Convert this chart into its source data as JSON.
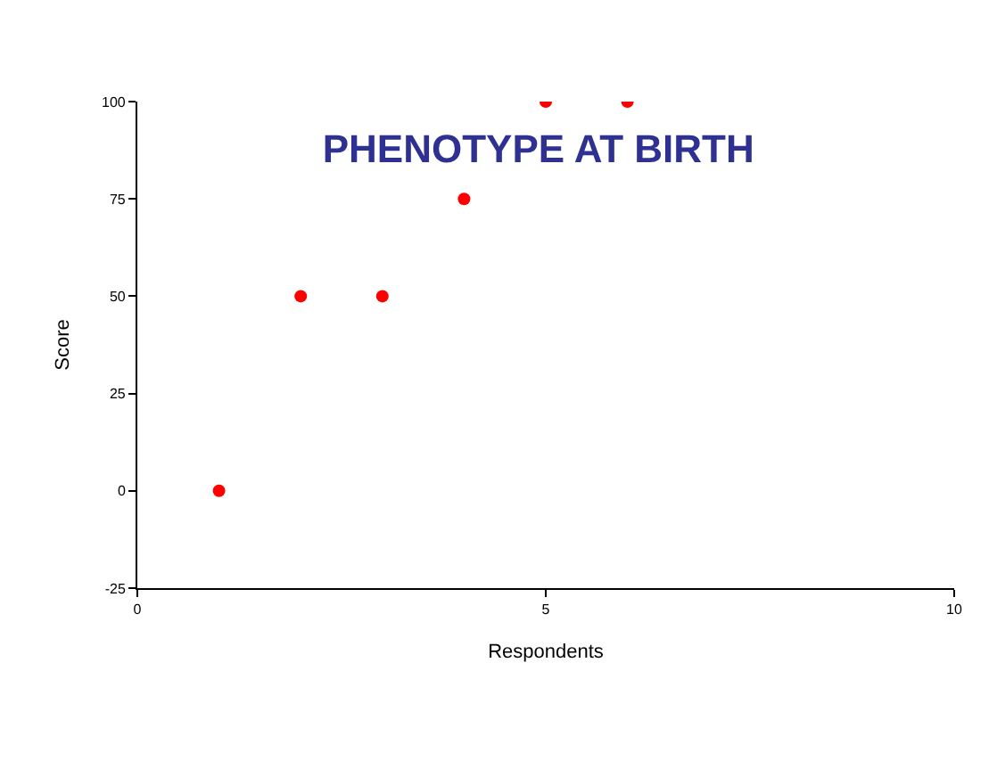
{
  "chart_data": {
    "type": "scatter",
    "title": "PHENOTYPE AT BIRTH",
    "xlabel": "Respondents",
    "ylabel": "Score",
    "x": [
      1,
      2,
      3,
      4,
      5,
      6
    ],
    "series": [
      {
        "color": "#ff0000",
        "values": [
          0,
          50,
          50,
          75,
          100,
          100
        ]
      }
    ],
    "xlim": [
      0,
      10
    ],
    "xticks": [
      0,
      5,
      10
    ],
    "ylim": [
      -25,
      100
    ],
    "yticks": [
      -25,
      0,
      25,
      50,
      75,
      100
    ],
    "marker": "circle"
  }
}
